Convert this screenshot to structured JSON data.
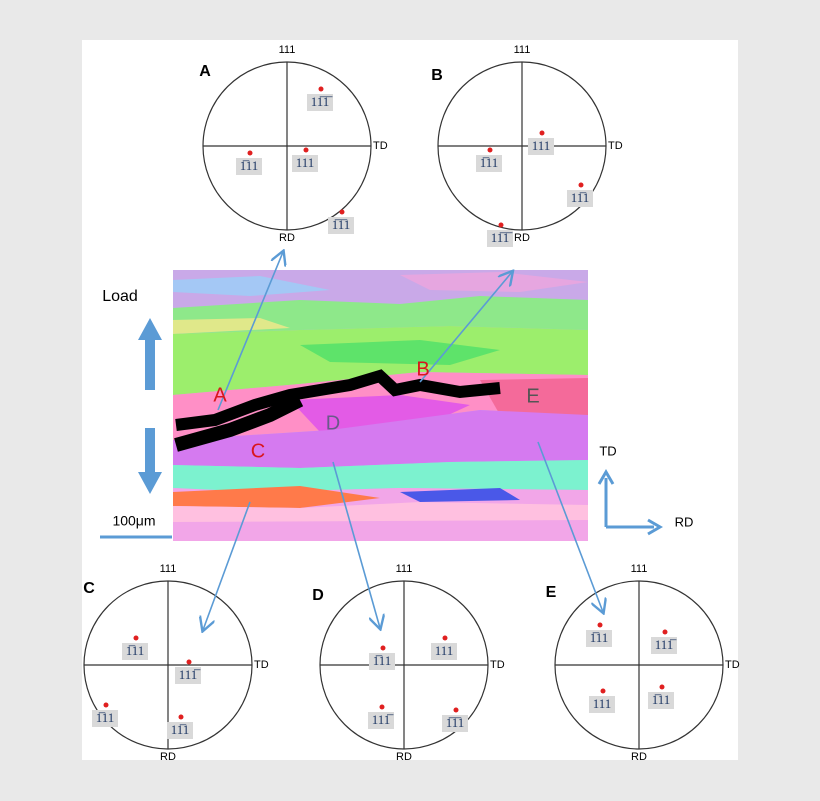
{
  "pole_figures": [
    {
      "letter": "A",
      "top": "111",
      "right": "TD",
      "bottom": "RD",
      "poles": [
        "11̅1̅",
        "1̅11",
        "111",
        "1̅1̅1"
      ]
    },
    {
      "letter": "B",
      "top": "111",
      "right": "TD",
      "bottom": "RD",
      "poles": [
        "111",
        "1̅11",
        "11̅1",
        "11̅1̅"
      ]
    },
    {
      "letter": "C",
      "top": "111",
      "right": "TD",
      "bottom": "RD",
      "poles": [
        "1̅11",
        "111̅",
        "1̅11",
        "11̅1"
      ]
    },
    {
      "letter": "D",
      "top": "111",
      "right": "TD",
      "bottom": "RD",
      "poles": [
        "1̅11",
        "111",
        "111̅",
        "1̅1̅1"
      ]
    },
    {
      "letter": "E",
      "top": "111",
      "right": "TD",
      "bottom": "RD",
      "poles": [
        "1̅11",
        "111̅",
        "111",
        "1̅11"
      ]
    }
  ],
  "map": {
    "regions": [
      "A",
      "B",
      "C",
      "D",
      "E"
    ],
    "load": "Load",
    "scale_bar": "100μm",
    "axis_up": "TD",
    "axis_right": "RD"
  }
}
